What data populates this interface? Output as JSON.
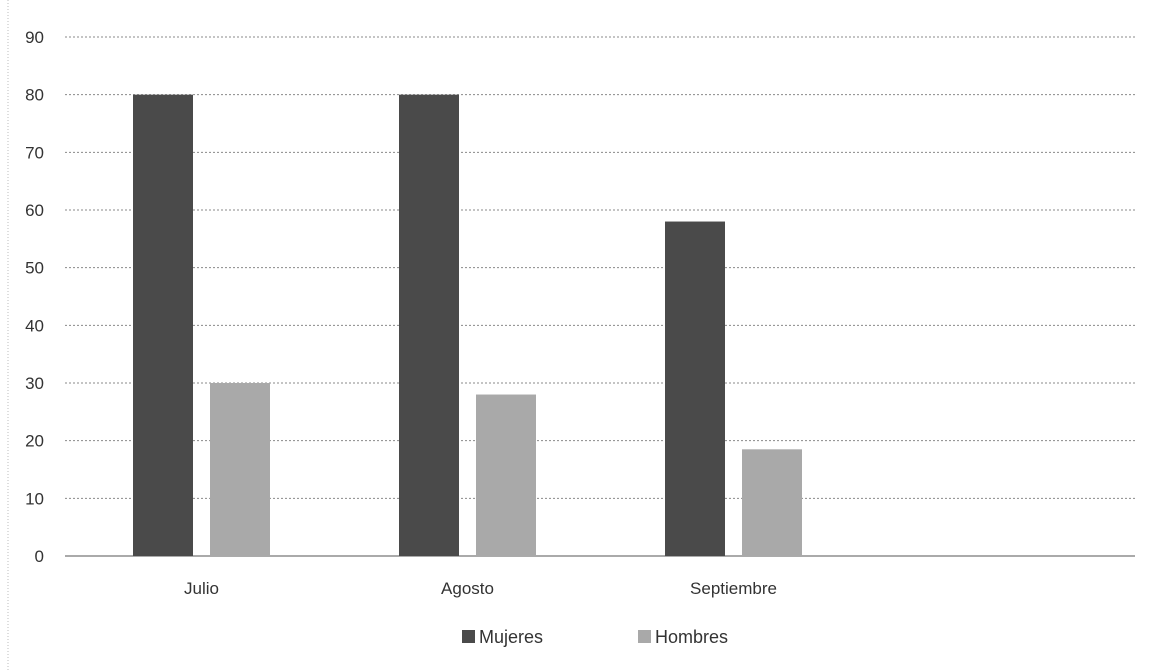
{
  "chart_data": {
    "type": "bar",
    "categories": [
      "Julio",
      "Agosto",
      "Septiembre"
    ],
    "series": [
      {
        "name": "Mujeres",
        "values": [
          80,
          80,
          58
        ],
        "color": "#4a4a4a"
      },
      {
        "name": "Hombres",
        "values": [
          30,
          28,
          18.5
        ],
        "color": "#a9a9a9"
      }
    ],
    "title": "",
    "xlabel": "",
    "ylabel": "",
    "ylim": [
      0,
      90
    ],
    "yticks": [
      0,
      10,
      20,
      30,
      40,
      50,
      60,
      70,
      80,
      90
    ],
    "grid": true,
    "legend_position": "bottom"
  }
}
